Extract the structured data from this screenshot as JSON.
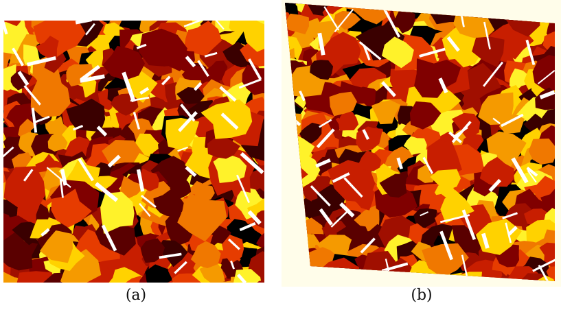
{
  "figure": {
    "panel_a": {
      "caption": "(a)",
      "description_icon": "grain-microstructure-map"
    },
    "panel_b": {
      "caption": "(b)",
      "description_icon": "deformed-grain-microstructure-map"
    }
  },
  "palette": {
    "colors": [
      "#5a0000",
      "#800000",
      "#a00f00",
      "#c81e00",
      "#e63c00",
      "#f07800",
      "#f59a00",
      "#ffd200",
      "#fff22a",
      "#3a0000",
      "#000000"
    ],
    "twin": "#ffffff",
    "background_b": "#fffdea"
  }
}
